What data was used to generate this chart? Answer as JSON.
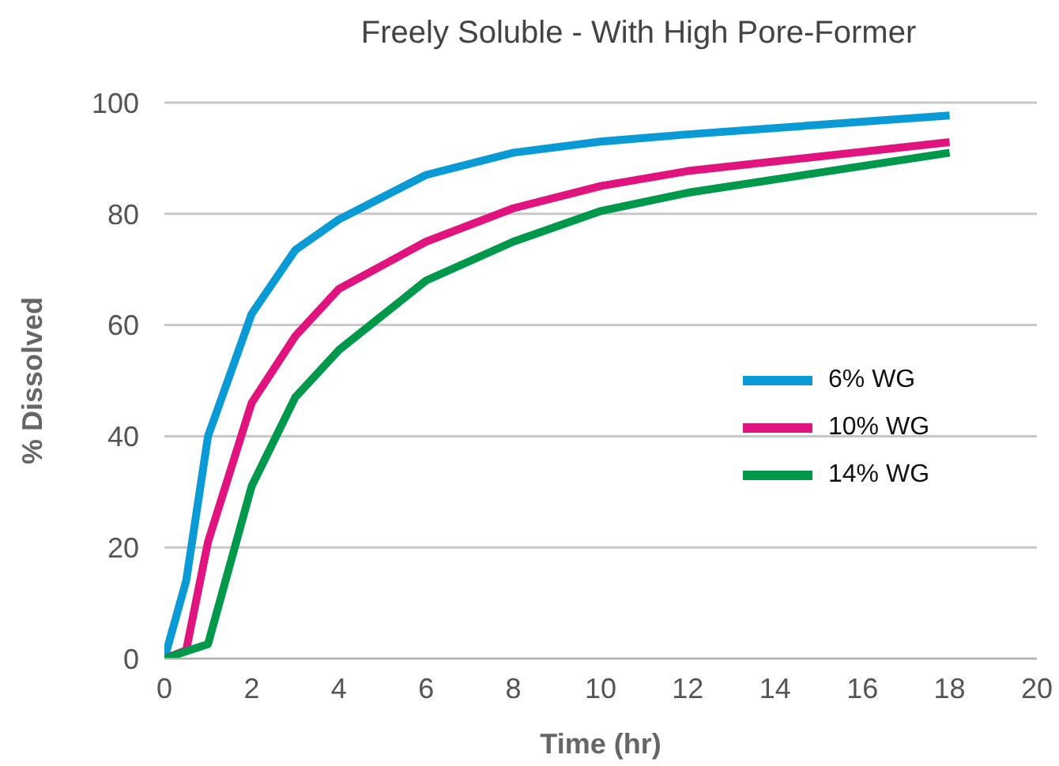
{
  "chart_data": {
    "type": "line",
    "title": "Freely Soluble - With High Pore-Former",
    "xlabel": "Time (hr)",
    "ylabel": "% Dissolved",
    "xlim": [
      0,
      20
    ],
    "xticks": [
      0,
      2,
      4,
      6,
      8,
      10,
      12,
      14,
      16,
      18,
      20
    ],
    "ylim": [
      0,
      100
    ],
    "yticks": [
      0,
      20,
      40,
      60,
      80,
      100
    ],
    "grid": "y",
    "legend": "right",
    "marker": "none",
    "line_style": "solid",
    "series": [
      {
        "name": "6% WG",
        "color": "#0a9ad6",
        "x": [
          0,
          0.5,
          1,
          2,
          3,
          4,
          6,
          8,
          10,
          12,
          18
        ],
        "values": [
          0,
          14,
          40,
          62,
          73.5,
          79,
          87,
          91,
          93,
          94.3,
          97.7
        ]
      },
      {
        "name": "10% WG",
        "color": "#e0137f",
        "x": [
          0,
          0.5,
          1,
          2,
          3,
          4,
          6,
          8,
          10,
          12,
          18
        ],
        "values": [
          0,
          1.5,
          21,
          46,
          58,
          66.5,
          75,
          81,
          85,
          87.7,
          92.9
        ]
      },
      {
        "name": "14% WG",
        "color": "#00984a",
        "x": [
          0,
          0.5,
          1,
          2,
          3,
          4,
          6,
          8,
          10,
          12,
          18
        ],
        "values": [
          0,
          1.3,
          2.6,
          31,
          47,
          55.5,
          68,
          75,
          80.5,
          83.8,
          91
        ]
      }
    ]
  }
}
